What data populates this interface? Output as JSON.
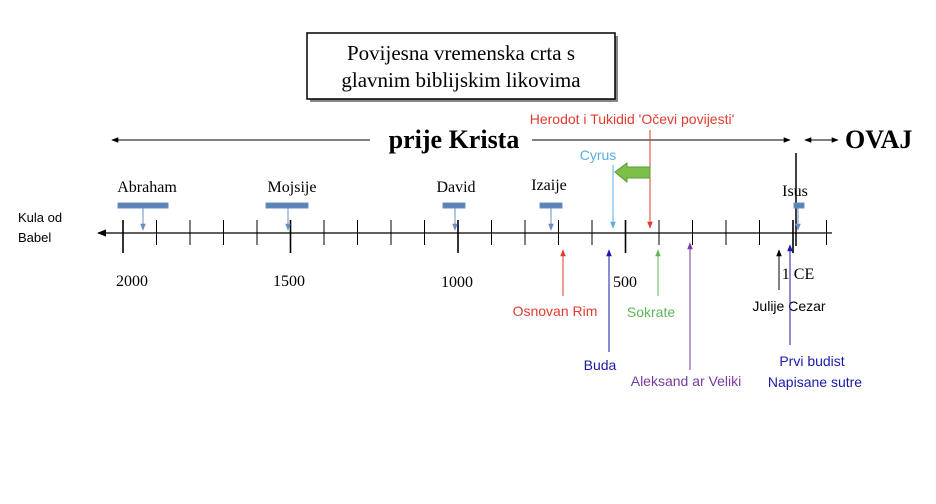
{
  "title": {
    "lines": [
      "Povijesna vremenska crta s",
      "glavnim biblijskim likovima"
    ]
  },
  "eras": {
    "before": "prije Krista",
    "after": "OVAJ"
  },
  "start_label": {
    "lines": [
      "Kula od",
      "Babel"
    ]
  },
  "figures": [
    "Abraham",
    "Mojsije",
    "David",
    "Izaije",
    "Isus"
  ],
  "year_labels": [
    2000,
    1500,
    1000,
    500,
    "1 CE"
  ],
  "events_above": [
    "Herodot i Tukidid 'Očevi povijesti'",
    "Cyrus"
  ],
  "events_below": [
    "Osnovan Rim",
    "Buda",
    "Sokrate",
    "Aleksand ar Veliki",
    "Julije Cezar",
    {
      "lines": [
        "Prvi budist",
        "Napisane sutre"
      ]
    }
  ]
}
